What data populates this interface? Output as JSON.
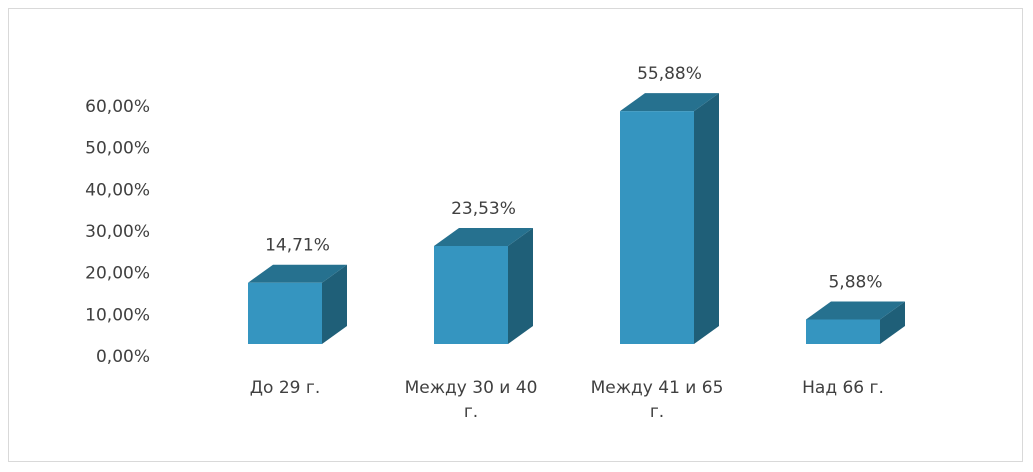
{
  "chart_data": {
    "type": "bar3d",
    "categories": [
      "До 29 г.",
      "Между 30 и 40 г.",
      "Между 41 и 65 г.",
      "Над 66 г."
    ],
    "values": [
      14.71,
      23.53,
      55.88,
      5.88
    ],
    "value_labels": [
      "14,71%",
      "23,53%",
      "55,88%",
      "5,88%"
    ],
    "color": "#3595c0",
    "ylim": [
      0,
      60
    ],
    "yticks": [
      {
        "value": 0,
        "label": "0,00%"
      },
      {
        "value": 10,
        "label": "10,00%"
      },
      {
        "value": 20,
        "label": "20,00%"
      },
      {
        "value": 30,
        "label": "30,00%"
      },
      {
        "value": 40,
        "label": "40,00%"
      },
      {
        "value": 50,
        "label": "50,00%"
      },
      {
        "value": 60,
        "label": "60,00%"
      }
    ],
    "grid": false
  }
}
